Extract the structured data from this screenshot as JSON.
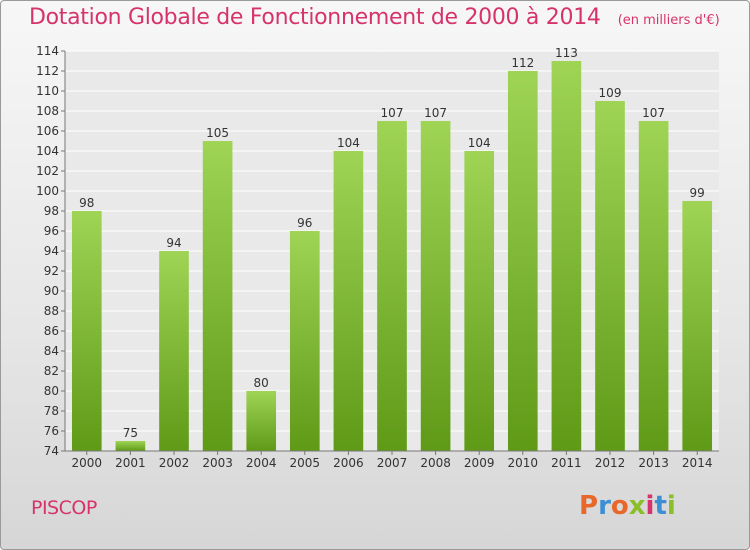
{
  "header": {
    "title": "Dotation Globale de Fonctionnement de 2000 à 2014",
    "unit_note": "(en milliers d'€)"
  },
  "footer": {
    "commune": "PISCOP",
    "brand": "Proxiti",
    "brand_colors": [
      "#e8672a",
      "#3c8fd2",
      "#e8672a",
      "#8bbf2a",
      "#d6336c",
      "#3c8fd2",
      "#8bbf2a"
    ]
  },
  "colors": {
    "accent": "#d6336c",
    "bar_top": "#9fd455",
    "bar_bottom": "#5f9a17",
    "grid": "#ffffff"
  },
  "chart_data": {
    "type": "bar",
    "title": "Dotation Globale de Fonctionnement de 2000 à 2014",
    "subtitle": "(en milliers d'€)",
    "categories": [
      "2000",
      "2001",
      "2002",
      "2003",
      "2004",
      "2005",
      "2006",
      "2007",
      "2008",
      "2009",
      "2010",
      "2011",
      "2012",
      "2013",
      "2014"
    ],
    "values": [
      98,
      75,
      94,
      105,
      80,
      96,
      104,
      107,
      107,
      104,
      112,
      113,
      109,
      107,
      99
    ],
    "ylim": [
      74,
      114
    ],
    "yticks": [
      74,
      76,
      78,
      80,
      82,
      84,
      86,
      88,
      90,
      92,
      94,
      96,
      98,
      100,
      102,
      104,
      106,
      108,
      110,
      112,
      114
    ],
    "grid": true,
    "xlabel": "",
    "ylabel": ""
  }
}
